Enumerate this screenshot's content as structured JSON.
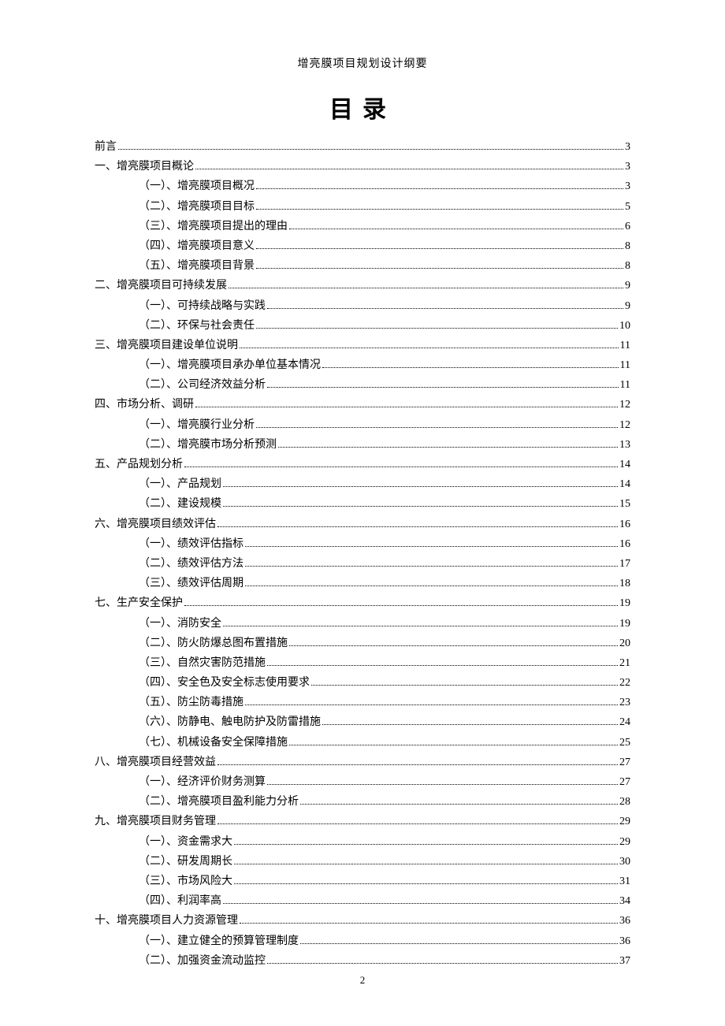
{
  "header": "增亮膜项目规划设计纲要",
  "title": "目录",
  "pageNumber": "2",
  "colors": {
    "text": "#000000",
    "background": "#ffffff"
  },
  "typography": {
    "header_fontsize": 14,
    "title_fontsize": 30,
    "body_fontsize": 14,
    "font_family": "SimSun"
  },
  "toc": [
    {
      "level": 1,
      "label": "前言",
      "page": "3"
    },
    {
      "level": 1,
      "label": "一、增亮膜项目概论",
      "page": "3"
    },
    {
      "level": 2,
      "label": "（一）、增亮膜项目概况",
      "page": "3"
    },
    {
      "level": 2,
      "label": "（二）、增亮膜项目目标",
      "page": "5"
    },
    {
      "level": 2,
      "label": "（三）、增亮膜项目提出的理由",
      "page": "6"
    },
    {
      "level": 2,
      "label": "（四）、增亮膜项目意义",
      "page": "8"
    },
    {
      "level": 2,
      "label": "（五）、增亮膜项目背景",
      "page": "8"
    },
    {
      "level": 1,
      "label": "二、增亮膜项目可持续发展",
      "page": "9"
    },
    {
      "level": 2,
      "label": "（一）、可持续战略与实践",
      "page": "9"
    },
    {
      "level": 2,
      "label": "（二）、环保与社会责任",
      "page": "10"
    },
    {
      "level": 1,
      "label": "三、增亮膜项目建设单位说明",
      "page": "11"
    },
    {
      "level": 2,
      "label": "（一）、增亮膜项目承办单位基本情况",
      "page": "11"
    },
    {
      "level": 2,
      "label": "（二）、公司经济效益分析",
      "page": "11"
    },
    {
      "level": 1,
      "label": "四、市场分析、调研",
      "page": "12"
    },
    {
      "level": 2,
      "label": "（一）、增亮膜行业分析",
      "page": "12"
    },
    {
      "level": 2,
      "label": "（二）、增亮膜市场分析预测",
      "page": "13"
    },
    {
      "level": 1,
      "label": "五、产品规划分析",
      "page": "14"
    },
    {
      "level": 2,
      "label": "（一）、产品规划",
      "page": "14"
    },
    {
      "level": 2,
      "label": "（二）、建设规模",
      "page": "15"
    },
    {
      "level": 1,
      "label": "六、增亮膜项目绩效评估",
      "page": "16"
    },
    {
      "level": 2,
      "label": "（一）、绩效评估指标",
      "page": "16"
    },
    {
      "level": 2,
      "label": "（二）、绩效评估方法",
      "page": "17"
    },
    {
      "level": 2,
      "label": "（三）、绩效评估周期",
      "page": "18"
    },
    {
      "level": 1,
      "label": "七、生产安全保护",
      "page": "19"
    },
    {
      "level": 2,
      "label": "（一）、消防安全",
      "page": "19"
    },
    {
      "level": 2,
      "label": "（二）、防火防爆总图布置措施",
      "page": "20"
    },
    {
      "level": 2,
      "label": "（三）、自然灾害防范措施",
      "page": "21"
    },
    {
      "level": 2,
      "label": "（四）、安全色及安全标志使用要求",
      "page": "22"
    },
    {
      "level": 2,
      "label": "（五）、防尘防毒措施",
      "page": "23"
    },
    {
      "level": 2,
      "label": "（六）、防静电、触电防护及防雷措施",
      "page": "24"
    },
    {
      "level": 2,
      "label": "（七）、机械设备安全保障措施",
      "page": "25"
    },
    {
      "level": 1,
      "label": "八、增亮膜项目经营效益",
      "page": "27"
    },
    {
      "level": 2,
      "label": "（一）、经济评价财务测算",
      "page": "27"
    },
    {
      "level": 2,
      "label": "（二）、增亮膜项目盈利能力分析",
      "page": "28"
    },
    {
      "level": 1,
      "label": "九、增亮膜项目财务管理",
      "page": "29"
    },
    {
      "level": 2,
      "label": "（一）、资金需求大",
      "page": "29"
    },
    {
      "level": 2,
      "label": "（二）、研发周期长",
      "page": "30"
    },
    {
      "level": 2,
      "label": "（三）、市场风险大",
      "page": "31"
    },
    {
      "level": 2,
      "label": "（四）、利润率高",
      "page": "34"
    },
    {
      "level": 1,
      "label": "十、增亮膜项目人力资源管理",
      "page": "36"
    },
    {
      "level": 2,
      "label": "（一）、建立健全的预算管理制度",
      "page": "36"
    },
    {
      "level": 2,
      "label": "（二）、加强资金流动监控",
      "page": "37"
    }
  ]
}
